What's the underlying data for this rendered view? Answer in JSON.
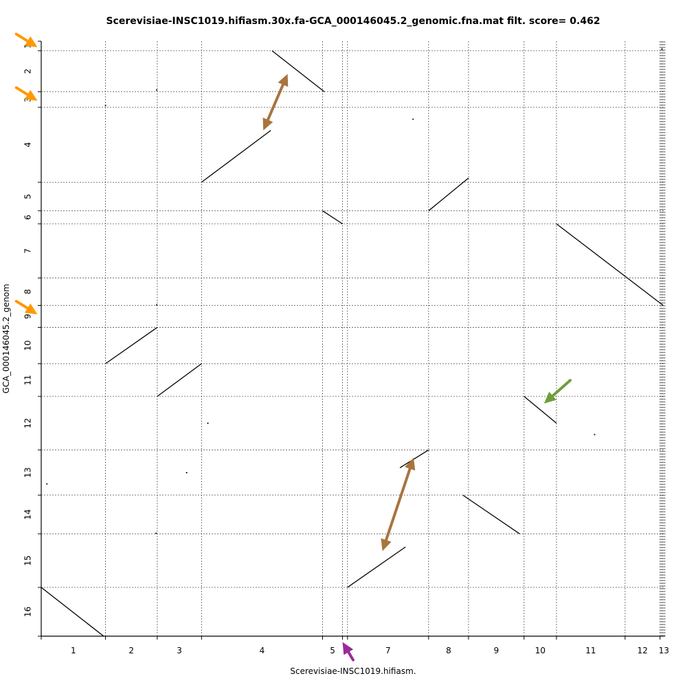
{
  "chart_data": {
    "type": "dotplot",
    "title": "Scerevisiae-INSC1019.hifiasm.30x.fa-GCA_000146045.2_genomic.fna.mat filt. score= 0.462",
    "xlabel": "Scerevisiae-INSC1019.hifiasm.",
    "ylabel": "GCA_000146045.2_genom",
    "x_contigs": [
      {
        "label": "1",
        "start": 0,
        "end": 0.103
      },
      {
        "label": "2",
        "start": 0.103,
        "end": 0.186
      },
      {
        "label": "3",
        "start": 0.186,
        "end": 0.257
      },
      {
        "label": "4",
        "start": 0.257,
        "end": 0.451
      },
      {
        "label": "5",
        "start": 0.451,
        "end": 0.483
      },
      {
        "label": "",
        "start": 0.483,
        "end": 0.491
      },
      {
        "label": "7",
        "start": 0.491,
        "end": 0.621
      },
      {
        "label": "8",
        "start": 0.621,
        "end": 0.685
      },
      {
        "label": "9",
        "start": 0.685,
        "end": 0.774
      },
      {
        "label": "10",
        "start": 0.774,
        "end": 0.826
      },
      {
        "label": "11",
        "start": 0.826,
        "end": 0.936
      },
      {
        "label": "12",
        "start": 0.936,
        "end": 0.992
      },
      {
        "label": "13",
        "start": 0.992,
        "end": 1.0
      }
    ],
    "y_contigs": [
      {
        "label": "1",
        "start": 0,
        "end": 0.016
      },
      {
        "label": "2",
        "start": 0.016,
        "end": 0.085
      },
      {
        "label": "3",
        "start": 0.085,
        "end": 0.111
      },
      {
        "label": "4",
        "start": 0.111,
        "end": 0.237
      },
      {
        "label": "5",
        "start": 0.237,
        "end": 0.285
      },
      {
        "label": "6",
        "start": 0.285,
        "end": 0.307
      },
      {
        "label": "7",
        "start": 0.307,
        "end": 0.398
      },
      {
        "label": "8",
        "start": 0.398,
        "end": 0.444
      },
      {
        "label": "9",
        "start": 0.444,
        "end": 0.481
      },
      {
        "label": "10",
        "start": 0.481,
        "end": 0.542
      },
      {
        "label": "11",
        "start": 0.542,
        "end": 0.597
      },
      {
        "label": "12",
        "start": 0.597,
        "end": 0.687
      },
      {
        "label": "13",
        "start": 0.687,
        "end": 0.763
      },
      {
        "label": "14",
        "start": 0.763,
        "end": 0.828
      },
      {
        "label": "15",
        "start": 0.828,
        "end": 0.918
      },
      {
        "label": "16",
        "start": 0.918,
        "end": 1.0
      }
    ],
    "alignments": [
      {
        "x1": 0.37,
        "y1": 0.016,
        "x2": 0.454,
        "y2": 0.085
      },
      {
        "x1": 0.257,
        "y1": 0.237,
        "x2": 0.368,
        "y2": 0.15
      },
      {
        "x1": 0.451,
        "y1": 0.285,
        "x2": 0.483,
        "y2": 0.307
      },
      {
        "x1": 0.621,
        "y1": 0.285,
        "x2": 0.685,
        "y2": 0.23
      },
      {
        "x1": 0.826,
        "y1": 0.307,
        "x2": 0.997,
        "y2": 0.444
      },
      {
        "x1": 0.103,
        "y1": 0.542,
        "x2": 0.186,
        "y2": 0.481
      },
      {
        "x1": 0.186,
        "y1": 0.597,
        "x2": 0.257,
        "y2": 0.542
      },
      {
        "x1": 0.774,
        "y1": 0.597,
        "x2": 0.826,
        "y2": 0.642
      },
      {
        "x1": 0.575,
        "y1": 0.717,
        "x2": 0.621,
        "y2": 0.687
      },
      {
        "x1": 0.676,
        "y1": 0.763,
        "x2": 0.767,
        "y2": 0.828
      },
      {
        "x1": 0.491,
        "y1": 0.918,
        "x2": 0.584,
        "y2": 0.85
      },
      {
        "x1": 0.0,
        "y1": 0.918,
        "x2": 0.1,
        "y2": 1.0
      }
    ],
    "specks": [
      {
        "x": 0.596,
        "y": 0.131
      },
      {
        "x": 0.103,
        "y": 0.108
      },
      {
        "x": 0.185,
        "y": 0.082
      },
      {
        "x": 0.267,
        "y": 0.642
      },
      {
        "x": 0.233,
        "y": 0.725
      },
      {
        "x": 0.887,
        "y": 0.661
      },
      {
        "x": 0.009,
        "y": 0.744
      },
      {
        "x": 0.184,
        "y": 0.827
      },
      {
        "x": 0.185,
        "y": 0.443
      },
      {
        "x": 0.995,
        "y": 0.013
      }
    ],
    "annotations": [
      {
        "type": "arrow",
        "color": "#ff9900",
        "from": [
          -0.04,
          -0.012
        ],
        "to": [
          -0.006,
          0.01
        ]
      },
      {
        "type": "arrow",
        "color": "#ff9900",
        "from": [
          -0.04,
          0.078
        ],
        "to": [
          -0.006,
          0.1
        ]
      },
      {
        "type": "arrow",
        "color": "#ff9900",
        "from": [
          -0.04,
          0.437
        ],
        "to": [
          -0.006,
          0.459
        ]
      },
      {
        "type": "double-arrow",
        "color": "#a8743f",
        "from": [
          0.356,
          0.15
        ],
        "to": [
          0.395,
          0.055
        ]
      },
      {
        "type": "double-arrow",
        "color": "#a8743f",
        "from": [
          0.547,
          0.857
        ],
        "to": [
          0.597,
          0.7
        ]
      },
      {
        "type": "arrow",
        "color": "#6e9e3c",
        "from": [
          0.848,
          0.57
        ],
        "to": [
          0.806,
          0.609
        ]
      },
      {
        "type": "arrow",
        "color": "#9b2a9a",
        "from": [
          0.5,
          1.04
        ],
        "to": [
          0.483,
          1.01
        ]
      }
    ]
  }
}
